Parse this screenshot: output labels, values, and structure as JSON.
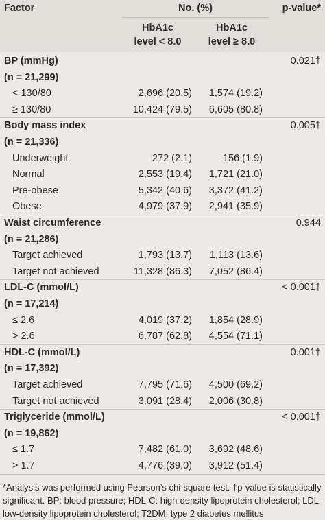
{
  "header": {
    "factor": "Factor",
    "no_pct": "No. (%)",
    "pvalue": "p-value*",
    "col1_line1": "HbA1c",
    "col1_line2": "level < 8.0",
    "col2_line1": "HbA1c",
    "col2_line2": "level ≥ 8.0"
  },
  "groups": [
    {
      "title": "BP (mmHg)",
      "n": "(n = 21,299)",
      "p": "0.021†",
      "rows": [
        {
          "label": "< 130/80",
          "a": "2,696 (20.5)",
          "b": "1,574 (19.2)"
        },
        {
          "label": "≥ 130/80",
          "a": "10,424 (79.5)",
          "b": "6,605 (80.8)"
        }
      ]
    },
    {
      "title": "Body mass index",
      "n": "(n = 21,336)",
      "p": "0.005†",
      "rows": [
        {
          "label": "Underweight",
          "a": "272 (2.1)",
          "b": "156 (1.9)"
        },
        {
          "label": "Normal",
          "a": "2,553 (19.4)",
          "b": "1,721 (21.0)"
        },
        {
          "label": "Pre-obese",
          "a": "5,342 (40.6)",
          "b": "3,372 (41.2)"
        },
        {
          "label": "Obese",
          "a": "4,979 (37.9)",
          "b": "2,941 (35.9)"
        }
      ]
    },
    {
      "title": "Waist circumference",
      "n": "(n = 21,286)",
      "p": "0.944",
      "rows": [
        {
          "label": "Target achieved",
          "a": "1,793 (13.7)",
          "b": "1,113 (13.6)"
        },
        {
          "label": "Target not achieved",
          "a": "11,328 (86.3)",
          "b": "7,052 (86.4)"
        }
      ]
    },
    {
      "title": "LDL-C (mmol/L)",
      "n": "(n = 17,214)",
      "p": "< 0.001†",
      "rows": [
        {
          "label": "≤ 2.6",
          "a": "4,019 (37.2)",
          "b": "1,854 (28.9)"
        },
        {
          "label": "> 2.6",
          "a": "6,787 (62.8)",
          "b": "4,554 (71.1)"
        }
      ]
    },
    {
      "title": "HDL-C (mmol/L)",
      "n": "(n = 17,392)",
      "p": "0.001†",
      "rows": [
        {
          "label": "Target achieved",
          "a": "7,795 (71.6)",
          "b": "4,500 (69.2)"
        },
        {
          "label": "Target not achieved",
          "a": "3,091 (28.4)",
          "b": "2,006 (30.8)"
        }
      ]
    },
    {
      "title": "Triglyceride (mmol/L)",
      "n": "(n = 19,862)",
      "p": "< 0.001†",
      "rows": [
        {
          "label": "≤ 1.7",
          "a": "7,482 (61.0)",
          "b": "3,692 (48.6)"
        },
        {
          "label": "> 1.7",
          "a": "4,776 (39.0)",
          "b": "3,912 (51.4)"
        }
      ]
    }
  ],
  "footnote": {
    "line1": "*Analysis was performed using Pearson’s chi-square test. †p-value is statistically",
    "line2": "significant. BP: blood pressure; HDL-C: high-density lipoprotein cholesterol; LDL-C:",
    "line3": "low-density lipoprotein cholesterol; T2DM: type 2 diabetes mellitus"
  }
}
